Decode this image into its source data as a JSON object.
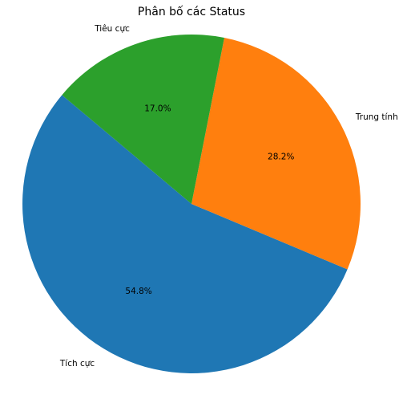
{
  "chart_data": {
    "type": "pie",
    "title": "Phân bố các Status",
    "categories": [
      "Tích cực",
      "Trung tính",
      "Tiêu cực"
    ],
    "values": [
      54.8,
      28.2,
      17.0
    ],
    "value_labels": [
      "54.8%",
      "28.2%",
      "17.0%"
    ],
    "colors": [
      "#1f77b4",
      "#ff7f0e",
      "#2ca02c"
    ],
    "start_angle_deg": 140,
    "direction": "counterclockwise",
    "legend": "none"
  }
}
